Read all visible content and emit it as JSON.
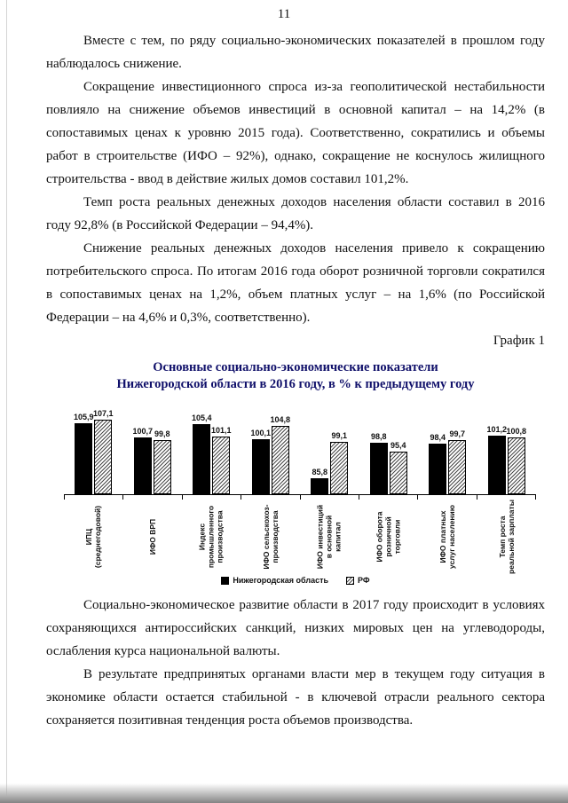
{
  "page": {
    "number": "11",
    "paragraphs": {
      "p1": "Вместе с тем, по ряду социально-экономических показателей в прошлом году наблюдалось снижение.",
      "p2": "Сокращение инвестиционного спроса из-за геополитической нестабильности повлияло на снижение объемов инвестиций в основной капитал – на 14,2% (в сопоставимых ценах к уровню 2015 года). Соответственно, сократились и объемы работ в строительстве (ИФО – 92%), однако, сокращение не коснулось жилищного строительства - ввод в действие жилых домов составил 101,2%.",
      "p3": "Темп роста реальных денежных доходов населения области составил в 2016 году 92,8% (в Российской Федерации – 94,4%).",
      "p4": "Снижение реальных денежных доходов населения привело к сокращению потребительского спроса. По итогам 2016 года оборот розничной торговли сократился в сопоставимых ценах на 1,2%, объем платных услуг – на 1,6% (по Российской Федерации – на 4,6% и 0,3%, соответственно).",
      "p5": "Социально-экономическое развитие области в 2017 году происходит в условиях сохраняющихся антироссийских санкций, низких мировых цен на углеводороды, ослабления курса национальной валюты.",
      "p6": "В результате предпринятых органами власти мер в текущем году ситуация в экономике области остается стабильной - в ключевой отрасли реального сектора сохраняется позитивная тенденция роста объемов производства."
    },
    "chart_caption": "График 1"
  },
  "chart_data": {
    "type": "bar",
    "title_line1": "Основные социально-экономические показатели",
    "title_line2": "Нижегородской области в 2016 году, в % к предыдущему году",
    "categories": [
      "ИПЦ\n(среднегодовой)",
      "ИФО ВРП",
      "Индекс\nпромышленного\nпроизводства",
      "ИФО сельскохоз-\nпроизводства",
      "ИФО инвестиций\nв основной\nкапитал",
      "ИФО оборота\nрозничной\nторговли",
      "ИФО платных\nуслуг населению",
      "Темп роста\nреальной зарплаты"
    ],
    "series": [
      {
        "name": "Нижегородская область",
        "values": [
          105.9,
          100.7,
          105.4,
          100.1,
          85.8,
          98.8,
          98.4,
          101.2
        ]
      },
      {
        "name": "РФ",
        "values": [
          107.1,
          99.8,
          101.1,
          104.8,
          99.1,
          95.4,
          99.7,
          100.8
        ]
      }
    ],
    "value_labels": [
      [
        "105,9",
        "107,1"
      ],
      [
        "100,7",
        "99,8"
      ],
      [
        "105,4",
        "101,1"
      ],
      [
        "100,1",
        "104,8"
      ],
      [
        "85,8",
        "99,1"
      ],
      [
        "98,8",
        "95,4"
      ],
      [
        "98,4",
        "99,7"
      ],
      [
        "101,2",
        "100,8"
      ]
    ],
    "xlabel": "",
    "ylabel": "",
    "ylim": [
      80,
      110
    ],
    "grid": false,
    "legend_position": "bottom",
    "colors": {
      "region_bar": "#000000",
      "rf_bar": "hatched-white"
    }
  }
}
